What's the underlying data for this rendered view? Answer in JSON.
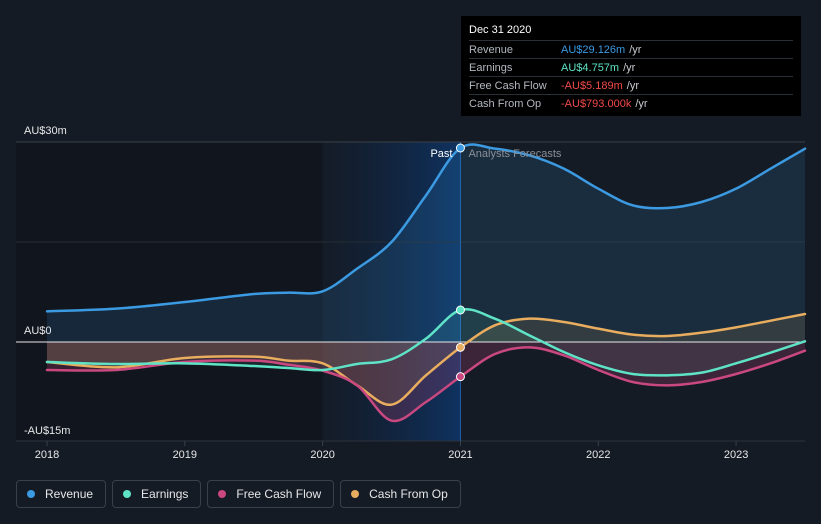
{
  "tooltip": {
    "date": "Dec 31 2020",
    "rows": [
      {
        "label": "Revenue",
        "value": "AU$29.126m",
        "unit": "/yr",
        "color": "#3b9ae1"
      },
      {
        "label": "Earnings",
        "value": "AU$4.757m",
        "unit": "/yr",
        "color": "#5fe3c6"
      },
      {
        "label": "Free Cash Flow",
        "value": "-AU$5.189m",
        "unit": "/yr",
        "color": "#f24a4a"
      },
      {
        "label": "Cash From Op",
        "value": "-AU$793.000k",
        "unit": "/yr",
        "color": "#f24a4a"
      }
    ]
  },
  "period_labels": {
    "past": "Past",
    "forecast": "Analysts Forecasts"
  },
  "legend": [
    {
      "label": "Revenue",
      "color": "#3b9ae1"
    },
    {
      "label": "Earnings",
      "color": "#5fe3c6"
    },
    {
      "label": "Free Cash Flow",
      "color": "#c9487f"
    },
    {
      "label": "Cash From Op",
      "color": "#e8ad5e"
    }
  ],
  "chart_data": {
    "type": "line",
    "y_tick_labels": [
      "AU$30m",
      "AU$0",
      "-AU$15m"
    ],
    "y_tick_values": [
      30,
      0,
      -15
    ],
    "ylim": [
      -15,
      30
    ],
    "x_tick_labels": [
      "2018",
      "2019",
      "2020",
      "2021",
      "2022",
      "2023"
    ],
    "x_tick_values": [
      2018,
      2019,
      2020,
      2021,
      2022,
      2023
    ],
    "xlim": [
      2018,
      2023.5
    ],
    "past_end": 2021,
    "series": [
      {
        "name": "Revenue",
        "color": "#3b9ae1",
        "points": [
          [
            2018,
            4.6
          ],
          [
            2018.5,
            5.0
          ],
          [
            2019,
            6.0
          ],
          [
            2019.5,
            7.2
          ],
          [
            2019.75,
            7.4
          ],
          [
            2020,
            7.6
          ],
          [
            2020.25,
            11.0
          ],
          [
            2020.5,
            15.0
          ],
          [
            2020.75,
            22.0
          ],
          [
            2021,
            29.1
          ],
          [
            2021.25,
            29.0
          ],
          [
            2021.5,
            28.0
          ],
          [
            2021.75,
            26.0
          ],
          [
            2022,
            23.0
          ],
          [
            2022.25,
            20.5
          ],
          [
            2022.5,
            20.1
          ],
          [
            2022.75,
            21.0
          ],
          [
            2023,
            23.0
          ],
          [
            2023.25,
            26.0
          ],
          [
            2023.5,
            29.0
          ]
        ]
      },
      {
        "name": "Earnings",
        "color": "#5fe3c6",
        "points": [
          [
            2018,
            -3.0
          ],
          [
            2018.5,
            -3.3
          ],
          [
            2019,
            -3.2
          ],
          [
            2019.5,
            -3.6
          ],
          [
            2019.75,
            -3.9
          ],
          [
            2020,
            -4.2
          ],
          [
            2020.25,
            -3.3
          ],
          [
            2020.5,
            -2.6
          ],
          [
            2020.75,
            0.5
          ],
          [
            2021,
            4.8
          ],
          [
            2021.25,
            3.5
          ],
          [
            2021.5,
            1.0
          ],
          [
            2021.75,
            -1.5
          ],
          [
            2022,
            -3.5
          ],
          [
            2022.25,
            -4.8
          ],
          [
            2022.5,
            -5.0
          ],
          [
            2022.75,
            -4.6
          ],
          [
            2023,
            -3.2
          ],
          [
            2023.25,
            -1.6
          ],
          [
            2023.5,
            0.1
          ]
        ]
      },
      {
        "name": "Free Cash Flow",
        "color": "#c9487f",
        "points": [
          [
            2018,
            -4.2
          ],
          [
            2018.5,
            -4.2
          ],
          [
            2019,
            -3.0
          ],
          [
            2019.5,
            -2.8
          ],
          [
            2019.75,
            -3.4
          ],
          [
            2020,
            -4.3
          ],
          [
            2020.25,
            -6.5
          ],
          [
            2020.5,
            -11.8
          ],
          [
            2020.75,
            -9.0
          ],
          [
            2021,
            -5.2
          ],
          [
            2021.25,
            -1.8
          ],
          [
            2021.5,
            -0.8
          ],
          [
            2021.75,
            -2.0
          ],
          [
            2022,
            -4.2
          ],
          [
            2022.25,
            -6.0
          ],
          [
            2022.5,
            -6.5
          ],
          [
            2022.75,
            -6.0
          ],
          [
            2023,
            -4.8
          ],
          [
            2023.25,
            -3.2
          ],
          [
            2023.5,
            -1.3
          ]
        ]
      },
      {
        "name": "Cash From Op",
        "color": "#e8ad5e",
        "points": [
          [
            2018,
            -3.0
          ],
          [
            2018.5,
            -3.8
          ],
          [
            2019,
            -2.4
          ],
          [
            2019.5,
            -2.2
          ],
          [
            2019.75,
            -2.8
          ],
          [
            2020,
            -3.2
          ],
          [
            2020.25,
            -6.5
          ],
          [
            2020.5,
            -9.4
          ],
          [
            2020.75,
            -5.0
          ],
          [
            2021,
            -0.8
          ],
          [
            2021.25,
            2.5
          ],
          [
            2021.5,
            3.5
          ],
          [
            2021.75,
            3.0
          ],
          [
            2022,
            2.0
          ],
          [
            2022.25,
            1.1
          ],
          [
            2022.5,
            0.9
          ],
          [
            2022.75,
            1.4
          ],
          [
            2023,
            2.2
          ],
          [
            2023.25,
            3.2
          ],
          [
            2023.5,
            4.2
          ]
        ]
      }
    ],
    "highlight_x": 2021
  }
}
